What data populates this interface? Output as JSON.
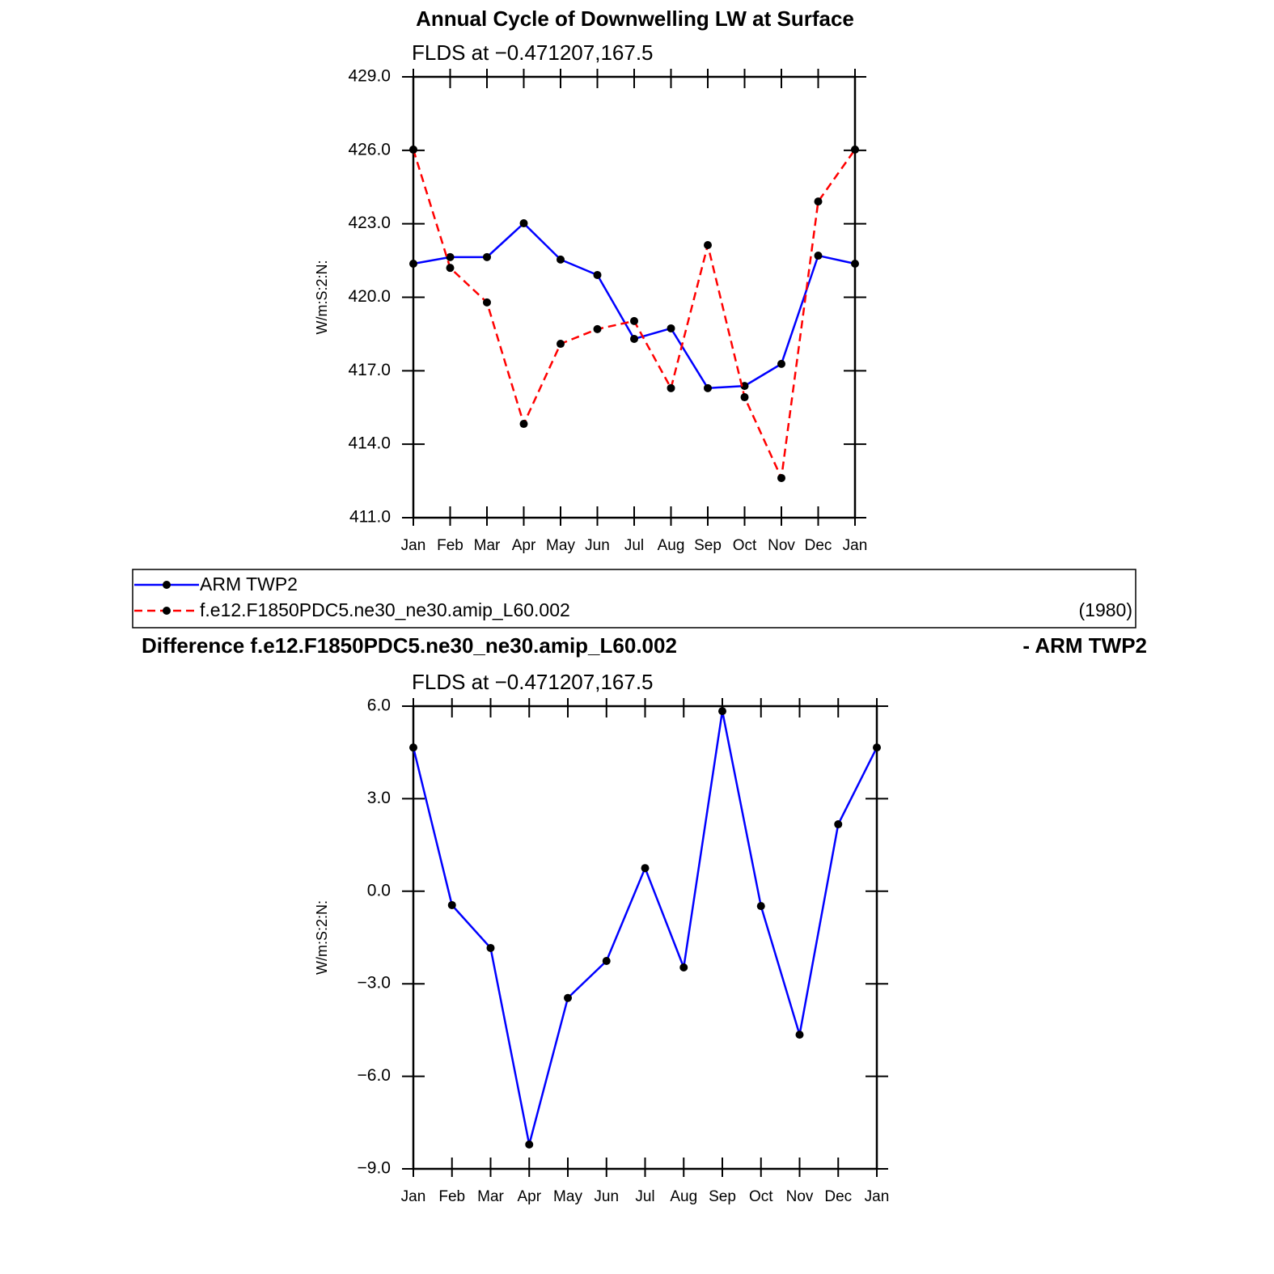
{
  "chart_data": [
    {
      "type": "line",
      "title": "Annual Cycle of Downwelling LW at Surface",
      "subtitle": "FLDS at −0.471207,167.5",
      "ylabel": "W/m:S:2:N:",
      "categories": [
        "Jan",
        "Feb",
        "Mar",
        "Apr",
        "May",
        "Jun",
        "Jul",
        "Aug",
        "Sep",
        "Oct",
        "Nov",
        "Dec",
        "Jan"
      ],
      "series": [
        {
          "name": "ARM TWP2",
          "color": "#0000ff",
          "linestyle": "solid",
          "values": [
            421.37,
            421.64,
            421.64,
            423.02,
            421.54,
            420.91,
            418.3,
            418.73,
            416.29,
            416.38,
            417.28,
            421.7,
            421.37
          ]
        },
        {
          "name": "f.e12.F1850PDC5.ne30_ne30.amip_L60.002",
          "color": "#ff0000",
          "linestyle": "dashed",
          "values": [
            426.03,
            421.2,
            419.79,
            414.83,
            418.1,
            418.7,
            419.03,
            416.29,
            422.13,
            415.92,
            412.62,
            423.91,
            426.03
          ]
        }
      ],
      "legend_note": "(1980)",
      "ylim": [
        411,
        429
      ],
      "yticks": [
        {
          "value": 411,
          "label": "411.0"
        },
        {
          "value": 414,
          "label": "414.0"
        },
        {
          "value": 417,
          "label": "417.0"
        },
        {
          "value": 420,
          "label": "420.0"
        },
        {
          "value": 423,
          "label": "423.0"
        },
        {
          "value": 426,
          "label": "426.0"
        },
        {
          "value": 429,
          "label": "429.0"
        }
      ]
    },
    {
      "type": "line",
      "title": "Difference f.e12.F1850PDC5.ne30_ne30.amip_L60.002",
      "title_right": "- ARM TWP2",
      "subtitle": "FLDS at −0.471207,167.5",
      "ylabel": "W/m:S:2:N:",
      "categories": [
        "Jan",
        "Feb",
        "Mar",
        "Apr",
        "May",
        "Jun",
        "Jul",
        "Aug",
        "Sep",
        "Oct",
        "Nov",
        "Dec",
        "Jan"
      ],
      "series": [
        {
          "color": "#0000ff",
          "linestyle": "solid",
          "values": [
            4.66,
            -0.45,
            -1.84,
            -8.21,
            -3.46,
            -2.26,
            0.75,
            -2.47,
            5.84,
            -0.48,
            -4.65,
            2.17,
            4.66
          ]
        }
      ],
      "ylim": [
        -9,
        6
      ],
      "yticks": [
        {
          "value": -9,
          "label": "−9.0"
        },
        {
          "value": -6,
          "label": "−6.0"
        },
        {
          "value": -3,
          "label": "−3.0"
        },
        {
          "value": 0,
          "label": "0.0"
        },
        {
          "value": 3,
          "label": "3.0"
        },
        {
          "value": 6,
          "label": "6.0"
        }
      ]
    }
  ]
}
